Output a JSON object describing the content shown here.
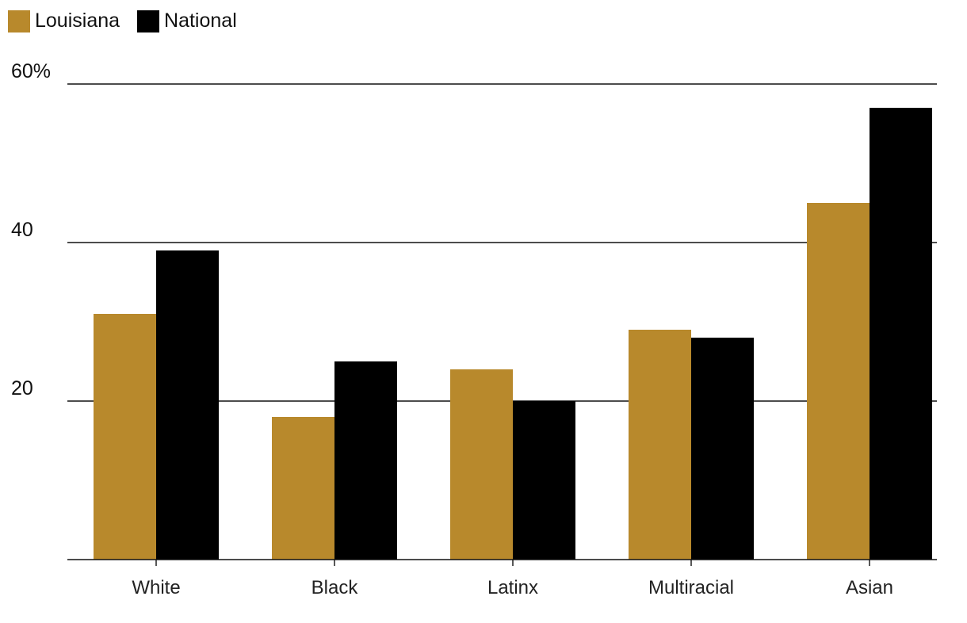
{
  "chart_data": {
    "type": "bar",
    "title": "",
    "xlabel": "",
    "ylabel": "",
    "categories": [
      "White",
      "Black",
      "Latinx",
      "Multiracial",
      "Asian"
    ],
    "series": [
      {
        "name": "Louisiana",
        "color": "#B8892C",
        "values": [
          31,
          18,
          24,
          29,
          45
        ]
      },
      {
        "name": "National",
        "color": "#000000",
        "values": [
          39,
          25,
          20,
          28,
          57
        ]
      }
    ],
    "ylim": [
      0,
      60
    ],
    "yticks": [
      {
        "value": 20,
        "label": "20"
      },
      {
        "value": 40,
        "label": "40"
      },
      {
        "value": 60,
        "label": "60%"
      }
    ],
    "grid": true,
    "legend_position": "top-left"
  }
}
